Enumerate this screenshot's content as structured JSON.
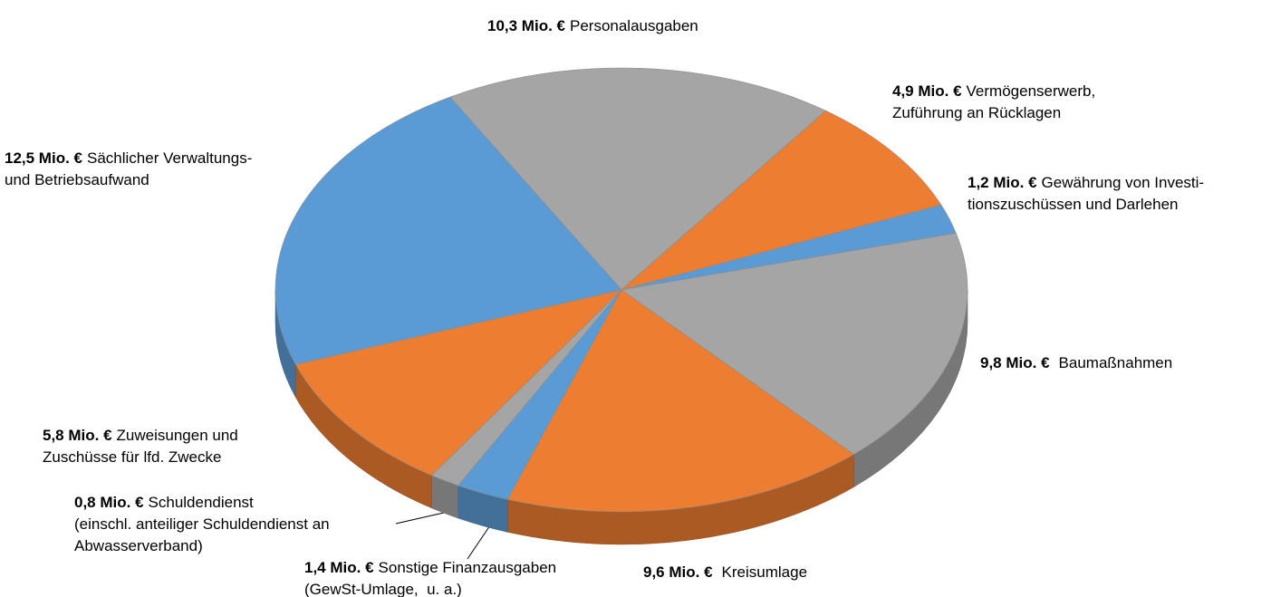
{
  "chart_data": {
    "type": "pie3d",
    "categories": [
      [
        "Personalausgaben"
      ],
      [
        "Vermögenserwerb,",
        "Zuführung an Rücklagen"
      ],
      [
        "Gewährung von Investi-",
        "tionszuschüssen und Darlehen"
      ],
      [
        "Baumaßnahmen"
      ],
      [
        "Kreisumlage"
      ],
      [
        "Sonstige Finanzausgaben",
        "(GewSt-Umlage,  u. a.)"
      ],
      [
        "Schuldendienst",
        "(einschl. anteiliger Schuldendienst an",
        "Abwasserverband)"
      ],
      [
        "Zuweisungen und",
        "Zuschüsse für lfd. Zwecke"
      ],
      [
        "Sächlicher Verwaltungs-",
        "und Betriebsaufwand"
      ]
    ],
    "values": [
      10.3,
      4.9,
      1.2,
      9.8,
      9.6,
      1.4,
      0.8,
      5.8,
      12.5
    ],
    "value_labels": [
      "10,3 Mio. €",
      "4,9 Mio. €",
      "1,2 Mio. €",
      "9,8 Mio. €",
      "9,6 Mio. €",
      "1,4 Mio. €",
      "0,8 Mio. €",
      "5,8 Mio. €",
      "12,5 Mio. €"
    ],
    "colors": [
      "#a5a5a5",
      "#ed7d31",
      "#5b9bd5",
      "#a5a5a5",
      "#ed7d31",
      "#5b9bd5",
      "#a5a5a5",
      "#ed7d31",
      "#5b9bd5"
    ]
  }
}
